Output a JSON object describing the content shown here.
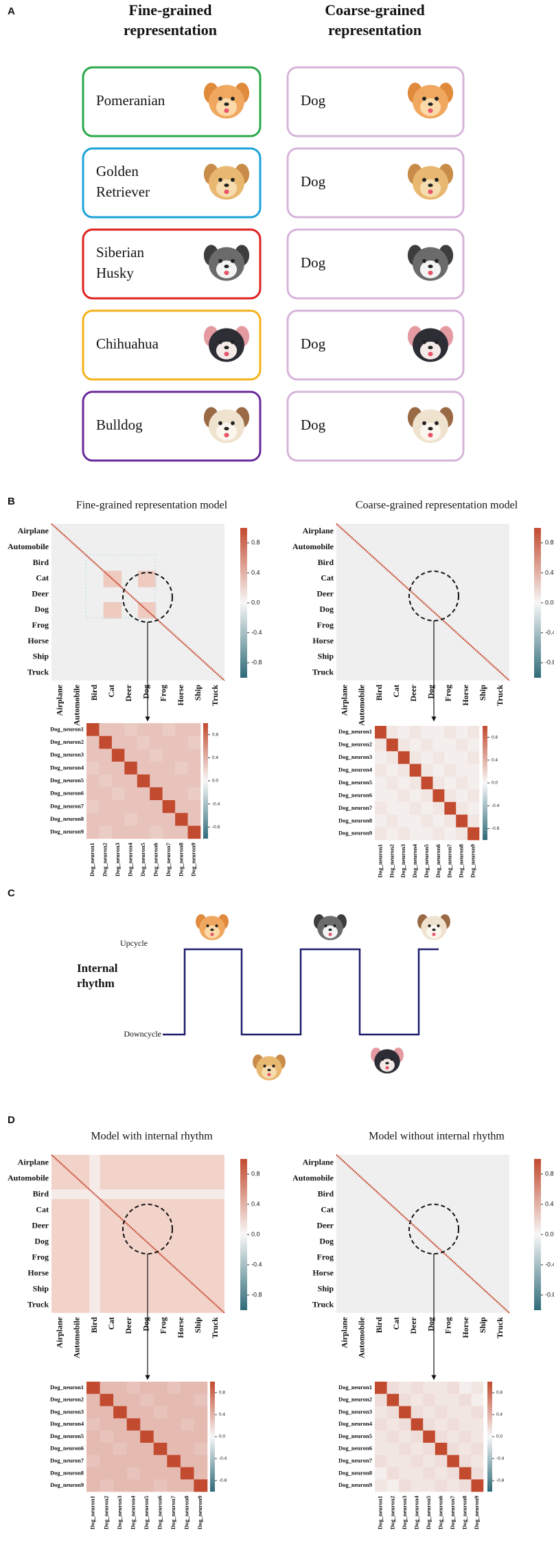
{
  "panel_a": {
    "label": "A",
    "fine_header": [
      "Fine-grained",
      "representation"
    ],
    "coarse_header": [
      "Coarse-grained",
      "representation"
    ],
    "fine": [
      [
        "Pomeranian"
      ],
      [
        "Golden",
        "Retriever"
      ],
      [
        "Siberian",
        "Husky"
      ],
      [
        "Chihuahua"
      ],
      [
        "Bulldog"
      ]
    ],
    "coarse": [
      "Dog",
      "Dog",
      "Dog",
      "Dog",
      "Dog"
    ]
  },
  "panel_b": {
    "label": "B",
    "large": [
      {
        "title": "Fine-grained representation model",
        "categories": [
          "Airplane",
          "Automobile",
          "Bird",
          "Cat",
          "Deer",
          "Dog",
          "Frog",
          "Horse",
          "Ship",
          "Truck"
        ],
        "colorbar_lim": [
          -1,
          1
        ],
        "colorbar_ticks": [
          0.8,
          0.4,
          {
            "value": 0,
            "label": "0.0"
          },
          -0.4,
          -0.8
        ]
      },
      {
        "title": "Coarse-grained representation model",
        "categories": [
          "Airplane",
          "Automobile",
          "Bird",
          "Cat",
          "Deer",
          "Dog",
          "Frog",
          "Horse",
          "Ship",
          "Truck"
        ],
        "colorbar_lim": [
          -1,
          1
        ],
        "colorbar_ticks": [
          0.8,
          0.4,
          {
            "value": 0,
            "label": "0.0"
          },
          -0.4,
          -0.8
        ]
      }
    ],
    "small": [
      {
        "neurons": [
          "Dog_neuron1",
          "Dog_neuron2",
          "Dog_neuron3",
          "Dog_neuron4",
          "Dog_neuron5",
          "Dog_neuron6",
          "Dog_neuron7",
          "Dog_neuron8",
          "Dog_neuron9"
        ],
        "colorbar_lim": [
          -1,
          1
        ],
        "colorbar_ticks": [
          0.8,
          0.4,
          {
            "value": 0,
            "label": "0.0"
          },
          -0.4,
          -0.8
        ],
        "matrix": [
          [
            1,
            0.3,
            0.3,
            0.25,
            0.3,
            0.3,
            0.25,
            0.3,
            0.3
          ],
          [
            0.3,
            1,
            0.3,
            0.3,
            0.25,
            0.3,
            0.3,
            0.3,
            0.25
          ],
          [
            0.3,
            0.3,
            1,
            0.3,
            0.3,
            0.25,
            0.3,
            0.3,
            0.3
          ],
          [
            0.25,
            0.3,
            0.3,
            1,
            0.3,
            0.3,
            0.3,
            0.25,
            0.3
          ],
          [
            0.3,
            0.25,
            0.3,
            0.3,
            1,
            0.3,
            0.3,
            0.3,
            0.3
          ],
          [
            0.3,
            0.3,
            0.25,
            0.3,
            0.3,
            1,
            0.3,
            0.3,
            0.25
          ],
          [
            0.25,
            0.3,
            0.3,
            0.3,
            0.3,
            0.3,
            1,
            0.3,
            0.3
          ],
          [
            0.3,
            0.3,
            0.3,
            0.25,
            0.3,
            0.3,
            0.3,
            1,
            0.3
          ],
          [
            0.3,
            0.25,
            0.3,
            0.3,
            0.3,
            0.25,
            0.3,
            0.3,
            1
          ]
        ]
      },
      {
        "neurons": [
          "Dog_neuron1",
          "Dog_neuron2",
          "Dog_neuron3",
          "Dog_neuron4",
          "Dog_neuron5",
          "Dog_neuron6",
          "Dog_neuron7",
          "Dog_neuron8",
          "Dog_neuron9"
        ],
        "colorbar_lim": [
          -1,
          1
        ],
        "colorbar_ticks": [
          0.8,
          0.4,
          {
            "value": 0,
            "label": "0.0"
          },
          -0.4,
          -0.8
        ],
        "matrix": [
          [
            1,
            0.1,
            0.05,
            0.1,
            0.05,
            0.05,
            0.1,
            0.05,
            0.1
          ],
          [
            0.1,
            1,
            0.1,
            0.05,
            0.1,
            0.05,
            0.05,
            0.1,
            0.05
          ],
          [
            0.05,
            0.1,
            1,
            0.1,
            0.05,
            0.1,
            0.05,
            0.05,
            0.1
          ],
          [
            0.1,
            0.05,
            0.1,
            1,
            0.1,
            0.05,
            0.1,
            0.05,
            0.05
          ],
          [
            0.05,
            0.1,
            0.05,
            0.1,
            1,
            0.1,
            0.05,
            0.1,
            0.05
          ],
          [
            0.05,
            0.05,
            0.1,
            0.05,
            0.1,
            1,
            0.1,
            0.05,
            0.1
          ],
          [
            0.1,
            0.05,
            0.05,
            0.1,
            0.05,
            0.1,
            1,
            0.1,
            0.05
          ],
          [
            0.05,
            0.1,
            0.05,
            0.05,
            0.1,
            0.05,
            0.1,
            1,
            0.1
          ],
          [
            0.1,
            0.05,
            0.1,
            0.05,
            0.05,
            0.1,
            0.05,
            0.1,
            1
          ]
        ]
      }
    ]
  },
  "panel_c": {
    "label": "C",
    "upcycle": "Upcycle",
    "downcycle": "Downcycle",
    "rhythm": [
      "Internal",
      "rhythm"
    ]
  },
  "panel_d": {
    "label": "D",
    "large": [
      {
        "title": "Model with internal rhythm",
        "categories": [
          "Airplane",
          "Automobile",
          "Bird",
          "Cat",
          "Deer",
          "Dog",
          "Frog",
          "Horse",
          "Ship",
          "Truck"
        ],
        "colorbar_lim": [
          -1,
          1
        ],
        "colorbar_ticks": [
          0.8,
          0.4,
          {
            "value": 0,
            "label": "0.0"
          },
          -0.4,
          -0.8
        ]
      },
      {
        "title": "Model without internal rhythm",
        "categories": [
          "Airplane",
          "Automobile",
          "Bird",
          "Cat",
          "Deer",
          "Dog",
          "Frog",
          "Horse",
          "Ship",
          "Truck"
        ],
        "colorbar_lim": [
          -1,
          1
        ],
        "colorbar_ticks": [
          0.8,
          0.4,
          {
            "value": 0,
            "label": "0.0"
          },
          -0.4,
          -0.8
        ]
      }
    ],
    "small": [
      {
        "neurons": [
          "Dog_neuron1",
          "Dog_neuron2",
          "Dog_neuron3",
          "Dog_neuron4",
          "Dog_neuron5",
          "Dog_neuron6",
          "Dog_neuron7",
          "Dog_neuron8",
          "Dog_neuron9"
        ],
        "colorbar_lim": [
          -1,
          1
        ],
        "colorbar_ticks": [
          0.8,
          0.4,
          {
            "value": 0,
            "label": "0.0"
          },
          -0.4,
          -0.8
        ],
        "matrix": [
          [
            1,
            0.35,
            0.35,
            0.3,
            0.35,
            0.35,
            0.3,
            0.35,
            0.35
          ],
          [
            0.35,
            1,
            0.35,
            0.35,
            0.3,
            0.35,
            0.35,
            0.35,
            0.3
          ],
          [
            0.35,
            0.35,
            1,
            0.35,
            0.35,
            0.3,
            0.35,
            0.35,
            0.35
          ],
          [
            0.3,
            0.35,
            0.35,
            1,
            0.35,
            0.35,
            0.35,
            0.3,
            0.35
          ],
          [
            0.35,
            0.3,
            0.35,
            0.35,
            1,
            0.35,
            0.35,
            0.35,
            0.35
          ],
          [
            0.35,
            0.35,
            0.3,
            0.35,
            0.35,
            1,
            0.35,
            0.35,
            0.3
          ],
          [
            0.3,
            0.35,
            0.35,
            0.35,
            0.35,
            0.35,
            1,
            0.35,
            0.35
          ],
          [
            0.35,
            0.35,
            0.35,
            0.3,
            0.35,
            0.35,
            0.35,
            1,
            0.35
          ],
          [
            0.35,
            0.3,
            0.35,
            0.35,
            0.35,
            0.3,
            0.35,
            0.35,
            1
          ]
        ]
      },
      {
        "neurons": [
          "Dog_neuron1",
          "Dog_neuron2",
          "Dog_neuron3",
          "Dog_neuron4",
          "Dog_neuron5",
          "Dog_neuron6",
          "Dog_neuron7",
          "Dog_neuron8",
          "Dog_neuron9"
        ],
        "colorbar_lim": [
          -1,
          1
        ],
        "colorbar_ticks": [
          0.8,
          0.4,
          {
            "value": 0,
            "label": "0.0"
          },
          -0.4,
          -0.8
        ],
        "matrix": [
          [
            1,
            0.15,
            0.1,
            0.15,
            0.1,
            0.1,
            0.15,
            0.05,
            0.1
          ],
          [
            0.15,
            1,
            0.15,
            0.1,
            0.15,
            0.1,
            0.1,
            0.15,
            0.05
          ],
          [
            0.1,
            0.15,
            1,
            0.15,
            0.1,
            0.15,
            0.1,
            0.1,
            0.15
          ],
          [
            0.15,
            0.1,
            0.15,
            1,
            0.15,
            0.1,
            0.15,
            0.1,
            0.1
          ],
          [
            0.1,
            0.15,
            0.1,
            0.15,
            1,
            0.15,
            0.1,
            0.15,
            0.1
          ],
          [
            0.1,
            0.1,
            0.15,
            0.1,
            0.15,
            1,
            0.15,
            0.1,
            0.15
          ],
          [
            0.15,
            0.1,
            0.1,
            0.15,
            0.1,
            0.15,
            1,
            0.15,
            0.1
          ],
          [
            0.05,
            0.15,
            0.1,
            0.1,
            0.15,
            0.1,
            0.15,
            1,
            0.15
          ],
          [
            0.1,
            0.05,
            0.15,
            0.1,
            0.1,
            0.15,
            0.1,
            0.15,
            1
          ]
        ]
      }
    ]
  }
}
